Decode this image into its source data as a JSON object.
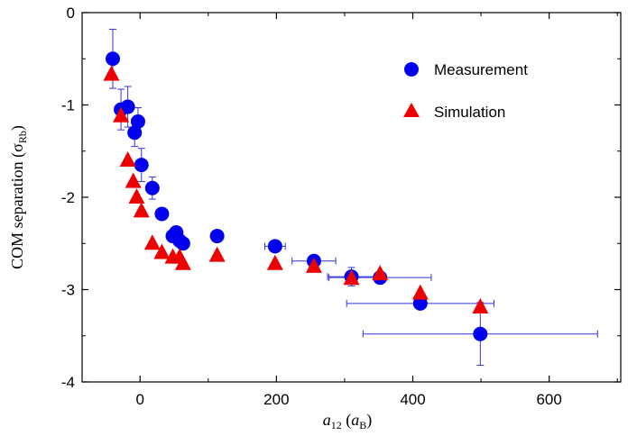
{
  "chart_data": {
    "type": "scatter",
    "xlabel_main": "a",
    "xlabel_sub": "12",
    "xlabel_unit_open": " (",
    "xlabel_unit_main": "a",
    "xlabel_unit_sub": "B",
    "xlabel_unit_close": ")",
    "ylabel_main": "COM separation (σ",
    "ylabel_sub": "Rb",
    "ylabel_close": ")",
    "xlim": [
      -85,
      705
    ],
    "ylim": [
      -4,
      0
    ],
    "xticks": [
      0,
      200,
      400,
      600
    ],
    "yticks": [
      0,
      -1,
      -2,
      -3,
      -4
    ],
    "xtick_labels": [
      "0",
      "200",
      "400",
      "600"
    ],
    "ytick_labels": [
      "0",
      "-1",
      "-2",
      "-3",
      "-4"
    ],
    "legend_position": "top-right",
    "colors": {
      "measurement": "#0000ee",
      "simulation": "#ee0000",
      "errorbar": "#3333dd",
      "axis": "#000000"
    },
    "series": [
      {
        "name": "Measurement",
        "marker": "circle",
        "points": [
          {
            "x": -40,
            "y": -0.5,
            "yerr": 0.32
          },
          {
            "x": -28,
            "y": -1.05,
            "yerr": 0.22
          },
          {
            "x": -18,
            "y": -1.02,
            "yerr": 0.22
          },
          {
            "x": -8,
            "y": -1.3,
            "yerr": 0.15
          },
          {
            "x": -3,
            "y": -1.18,
            "yerr": 0.15
          },
          {
            "x": 2,
            "y": -1.65,
            "yerr": 0.18
          },
          {
            "x": 18,
            "y": -1.9,
            "yerr": 0.12
          },
          {
            "x": 32,
            "y": -2.18
          },
          {
            "x": 48,
            "y": -2.42
          },
          {
            "x": 53,
            "y": -2.38
          },
          {
            "x": 58,
            "y": -2.47
          },
          {
            "x": 63,
            "y": -2.5
          },
          {
            "x": 113,
            "y": -2.42,
            "yerr": 0.05
          },
          {
            "x": 198,
            "y": -2.53,
            "xerr": 15
          },
          {
            "x": 255,
            "y": -2.69,
            "xerr": 32
          },
          {
            "x": 310,
            "y": -2.86,
            "xerr": 35,
            "yerr": 0.1
          },
          {
            "x": 352,
            "y": -2.87,
            "xerr": 75
          },
          {
            "x": 411,
            "y": -3.15,
            "xerr": 108
          },
          {
            "x": 499,
            "y": -3.48,
            "xerr": 172,
            "yerr": 0.34
          }
        ]
      },
      {
        "name": "Simulation",
        "marker": "triangle",
        "points": [
          {
            "x": -42,
            "y": -0.67
          },
          {
            "x": -28,
            "y": -1.12
          },
          {
            "x": -18,
            "y": -1.6
          },
          {
            "x": -10,
            "y": -1.83
          },
          {
            "x": -5,
            "y": -2.0
          },
          {
            "x": 2,
            "y": -2.15
          },
          {
            "x": 18,
            "y": -2.5
          },
          {
            "x": 32,
            "y": -2.6
          },
          {
            "x": 48,
            "y": -2.65
          },
          {
            "x": 58,
            "y": -2.65
          },
          {
            "x": 63,
            "y": -2.72
          },
          {
            "x": 113,
            "y": -2.63
          },
          {
            "x": 198,
            "y": -2.72
          },
          {
            "x": 255,
            "y": -2.75
          },
          {
            "x": 310,
            "y": -2.88
          },
          {
            "x": 352,
            "y": -2.83
          },
          {
            "x": 411,
            "y": -3.04
          },
          {
            "x": 499,
            "y": -3.19
          }
        ]
      }
    ]
  }
}
